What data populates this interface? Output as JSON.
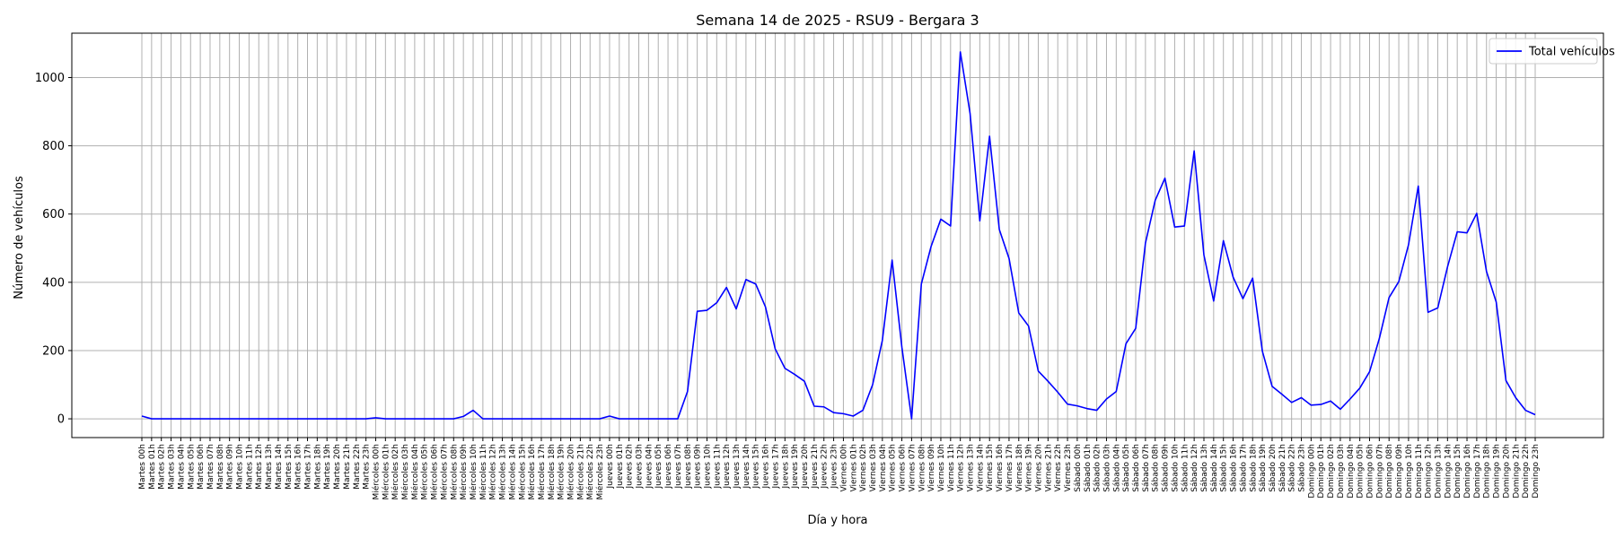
{
  "chart_data": {
    "type": "line",
    "title": "Semana 14 de 2025 - RSU9 - Bergara 3",
    "xlabel": "Día y hora",
    "ylabel": "Número de vehículos",
    "ylim": [
      -55,
      1130
    ],
    "yticks": [
      0,
      200,
      400,
      600,
      800,
      1000
    ],
    "grid": true,
    "legend": "top-right",
    "colors": {
      "line": "#0000ff",
      "grid": "#b0b0b0",
      "axis": "#000000"
    },
    "x": [
      "Martes 00h",
      "Martes 01h",
      "Martes 02h",
      "Martes 03h",
      "Martes 04h",
      "Martes 05h",
      "Martes 06h",
      "Martes 07h",
      "Martes 08h",
      "Martes 09h",
      "Martes 10h",
      "Martes 11h",
      "Martes 12h",
      "Martes 13h",
      "Martes 14h",
      "Martes 15h",
      "Martes 16h",
      "Martes 17h",
      "Martes 18h",
      "Martes 19h",
      "Martes 20h",
      "Martes 21h",
      "Martes 22h",
      "Martes 23h",
      "Miércoles 00h",
      "Miércoles 01h",
      "Miércoles 02h",
      "Miércoles 03h",
      "Miércoles 04h",
      "Miércoles 05h",
      "Miércoles 06h",
      "Miércoles 07h",
      "Miércoles 08h",
      "Miércoles 09h",
      "Miércoles 10h",
      "Miércoles 11h",
      "Miércoles 12h",
      "Miércoles 13h",
      "Miércoles 14h",
      "Miércoles 15h",
      "Miércoles 16h",
      "Miércoles 17h",
      "Miércoles 18h",
      "Miércoles 19h",
      "Miércoles 20h",
      "Miércoles 21h",
      "Miércoles 22h",
      "Miércoles 23h",
      "Jueves 00h",
      "Jueves 01h",
      "Jueves 02h",
      "Jueves 03h",
      "Jueves 04h",
      "Jueves 05h",
      "Jueves 06h",
      "Jueves 07h",
      "Jueves 08h",
      "Jueves 09h",
      "Jueves 10h",
      "Jueves 11h",
      "Jueves 12h",
      "Jueves 13h",
      "Jueves 14h",
      "Jueves 15h",
      "Jueves 16h",
      "Jueves 17h",
      "Jueves 18h",
      "Jueves 19h",
      "Jueves 20h",
      "Jueves 21h",
      "Jueves 22h",
      "Jueves 23h",
      "Viernes 00h",
      "Viernes 01h",
      "Viernes 02h",
      "Viernes 03h",
      "Viernes 04h",
      "Viernes 05h",
      "Viernes 06h",
      "Viernes 07h",
      "Viernes 08h",
      "Viernes 09h",
      "Viernes 10h",
      "Viernes 11h",
      "Viernes 12h",
      "Viernes 13h",
      "Viernes 14h",
      "Viernes 15h",
      "Viernes 16h",
      "Viernes 17h",
      "Viernes 18h",
      "Viernes 19h",
      "Viernes 20h",
      "Viernes 21h",
      "Viernes 22h",
      "Viernes 23h",
      "Sábado 00h",
      "Sábado 01h",
      "Sábado 02h",
      "Sábado 03h",
      "Sábado 04h",
      "Sábado 05h",
      "Sábado 06h",
      "Sábado 07h",
      "Sábado 08h",
      "Sábado 09h",
      "Sábado 10h",
      "Sábado 11h",
      "Sábado 12h",
      "Sábado 13h",
      "Sábado 14h",
      "Sábado 15h",
      "Sábado 16h",
      "Sábado 17h",
      "Sábado 18h",
      "Sábado 19h",
      "Sábado 20h",
      "Sábado 21h",
      "Sábado 22h",
      "Sábado 23h",
      "Domingo 00h",
      "Domingo 01h",
      "Domingo 02h",
      "Domingo 03h",
      "Domingo 04h",
      "Domingo 05h",
      "Domingo 06h",
      "Domingo 07h",
      "Domingo 08h",
      "Domingo 09h",
      "Domingo 10h",
      "Domingo 11h",
      "Domingo 12h",
      "Domingo 13h",
      "Domingo 14h",
      "Domingo 15h",
      "Domingo 16h",
      "Domingo 17h",
      "Domingo 18h",
      "Domingo 19h",
      "Domingo 20h",
      "Domingo 21h",
      "Domingo 22h",
      "Domingo 23h"
    ],
    "series": [
      {
        "name": "Total vehículos",
        "values": [
          8,
          0,
          0,
          0,
          0,
          0,
          0,
          0,
          0,
          0,
          0,
          0,
          0,
          0,
          0,
          0,
          0,
          0,
          0,
          0,
          0,
          0,
          0,
          0,
          3,
          0,
          0,
          0,
          0,
          0,
          0,
          0,
          0,
          7,
          25,
          0,
          0,
          0,
          0,
          0,
          0,
          0,
          0,
          0,
          0,
          0,
          0,
          0,
          8,
          0,
          0,
          0,
          0,
          0,
          0,
          0,
          80,
          315,
          318,
          340,
          385,
          322,
          408,
          395,
          328,
          205,
          148,
          130,
          110,
          37,
          35,
          18,
          15,
          8,
          25,
          100,
          230,
          465,
          210,
          0,
          395,
          505,
          585,
          565,
          1075,
          895,
          580,
          828,
          555,
          470,
          310,
          272,
          140,
          110,
          78,
          43,
          38,
          30,
          25,
          58,
          80,
          220,
          265,
          515,
          640,
          705,
          562,
          565,
          785,
          480,
          345,
          522,
          415,
          352,
          412,
          198,
          95,
          72,
          48,
          62,
          40,
          42,
          52,
          28,
          58,
          90,
          138,
          235,
          355,
          402,
          510,
          682,
          312,
          325,
          445,
          548,
          545,
          602,
          432,
          342,
          112,
          62,
          25,
          12
        ]
      }
    ]
  }
}
